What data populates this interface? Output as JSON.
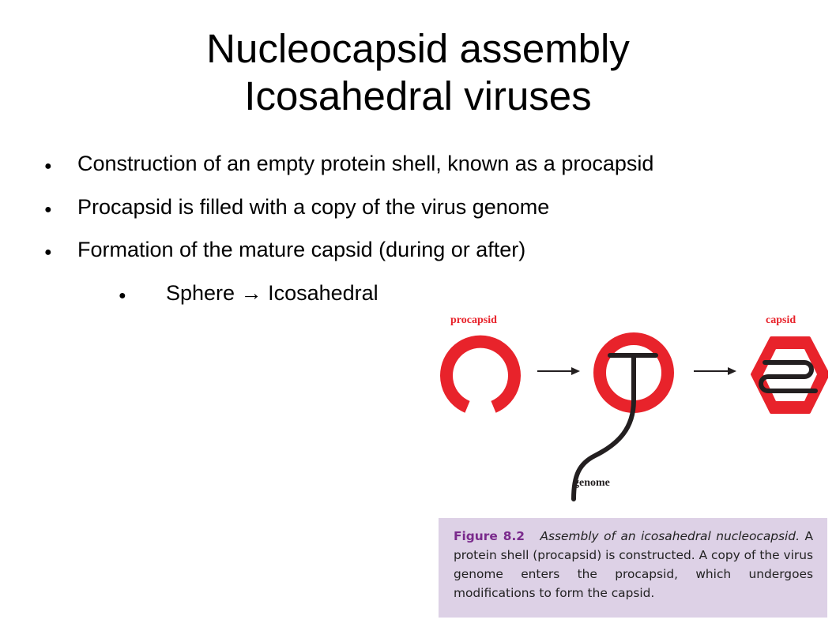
{
  "title": {
    "line1": "Nucleocapsid assembly",
    "line2": "Icosahedral viruses"
  },
  "bullets": [
    {
      "text": "Construction of an empty protein shell, known as a procapsid",
      "level": 1
    },
    {
      "text": "Procapsid is filled with a copy of the virus genome",
      "level": 1
    },
    {
      "text": "Formation of the mature capsid (during or after)",
      "level": 1
    },
    {
      "text": "Sphere → Icosahedral",
      "level": 2
    }
  ],
  "figure": {
    "labels": {
      "procapsid": "procapsid",
      "capsid": "capsid",
      "genome": "genome"
    },
    "colors": {
      "shell": "#e8232b",
      "genome": "#231f20",
      "arrow": "#231f20"
    }
  },
  "caption": {
    "number": "Figure 8.2",
    "title": "Assembly of an icosahedral nucleocapsid.",
    "body": "A protein shell (procapsid) is constructed. A copy of the virus genome enters the procapsid, which undergoes modifications to form the capsid.",
    "background": "#ddd1e6",
    "number_color": "#7a2a8c"
  }
}
